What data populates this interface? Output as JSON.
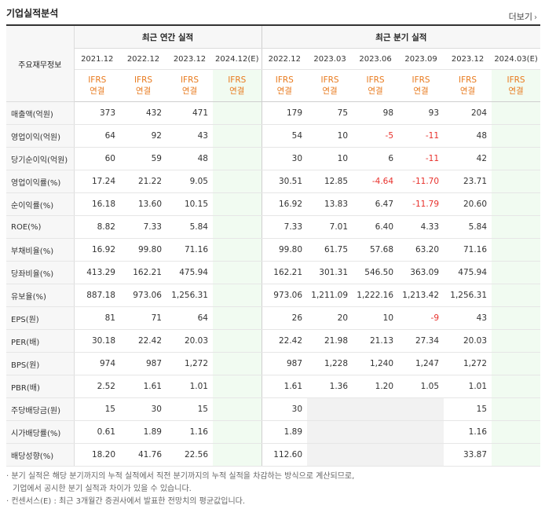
{
  "header": {
    "title": "기업실적분석",
    "more_label": "더보기"
  },
  "table": {
    "label_header": "주요재무정보",
    "annual_header": "최근 연간 실적",
    "quarter_header": "최근 분기 실적",
    "annual_periods": [
      "2021.12",
      "2022.12",
      "2023.12",
      "2024.12(E)"
    ],
    "quarter_periods": [
      "2022.12",
      "2023.03",
      "2023.06",
      "2023.09",
      "2023.12",
      "2024.03(E)"
    ],
    "ifrs_line1": "IFRS",
    "ifrs_line2": "연결",
    "rows": [
      {
        "label": "매출액(억원)",
        "annual": [
          "373",
          "432",
          "471",
          ""
        ],
        "quarter": [
          "179",
          "75",
          "98",
          "93",
          "204",
          ""
        ]
      },
      {
        "label": "영업이익(억원)",
        "annual": [
          "64",
          "92",
          "43",
          ""
        ],
        "quarter": [
          "54",
          "10",
          "-5",
          "-11",
          "48",
          ""
        ]
      },
      {
        "label": "당기순이익(억원)",
        "annual": [
          "60",
          "59",
          "48",
          ""
        ],
        "quarter": [
          "30",
          "10",
          "6",
          "-11",
          "42",
          ""
        ]
      },
      {
        "label": "영업이익률(%)",
        "annual": [
          "17.24",
          "21.22",
          "9.05",
          ""
        ],
        "quarter": [
          "30.51",
          "12.85",
          "-4.64",
          "-11.70",
          "23.71",
          ""
        ]
      },
      {
        "label": "순이익률(%)",
        "annual": [
          "16.18",
          "13.60",
          "10.15",
          ""
        ],
        "quarter": [
          "16.92",
          "13.83",
          "6.47",
          "-11.79",
          "20.60",
          ""
        ]
      },
      {
        "label": "ROE(%)",
        "annual": [
          "8.82",
          "7.33",
          "5.84",
          ""
        ],
        "quarter": [
          "7.33",
          "7.01",
          "6.40",
          "4.33",
          "5.84",
          ""
        ]
      },
      {
        "label": "부채비율(%)",
        "annual": [
          "16.92",
          "99.80",
          "71.16",
          ""
        ],
        "quarter": [
          "99.80",
          "61.75",
          "57.68",
          "63.20",
          "71.16",
          ""
        ]
      },
      {
        "label": "당좌비율(%)",
        "annual": [
          "413.29",
          "162.21",
          "475.94",
          ""
        ],
        "quarter": [
          "162.21",
          "301.31",
          "546.50",
          "363.09",
          "475.94",
          ""
        ]
      },
      {
        "label": "유보율(%)",
        "annual": [
          "887.18",
          "973.06",
          "1,256.31",
          ""
        ],
        "quarter": [
          "973.06",
          "1,211.09",
          "1,222.16",
          "1,213.42",
          "1,256.31",
          ""
        ]
      },
      {
        "label": "EPS(원)",
        "annual": [
          "81",
          "71",
          "64",
          ""
        ],
        "quarter": [
          "26",
          "20",
          "10",
          "-9",
          "43",
          ""
        ]
      },
      {
        "label": "PER(배)",
        "annual": [
          "30.18",
          "22.42",
          "20.03",
          ""
        ],
        "quarter": [
          "22.42",
          "21.98",
          "21.13",
          "27.34",
          "20.03",
          ""
        ]
      },
      {
        "label": "BPS(원)",
        "annual": [
          "974",
          "987",
          "1,272",
          ""
        ],
        "quarter": [
          "987",
          "1,228",
          "1,240",
          "1,247",
          "1,272",
          ""
        ]
      },
      {
        "label": "PBR(배)",
        "annual": [
          "2.52",
          "1.61",
          "1.01",
          ""
        ],
        "quarter": [
          "1.61",
          "1.36",
          "1.20",
          "1.05",
          "1.01",
          ""
        ]
      },
      {
        "label": "주당배당금(원)",
        "annual": [
          "15",
          "30",
          "15",
          ""
        ],
        "quarter": [
          "30",
          "",
          "",
          "",
          "15",
          ""
        ]
      },
      {
        "label": "시가배당률(%)",
        "annual": [
          "0.61",
          "1.89",
          "1.16",
          ""
        ],
        "quarter": [
          "1.89",
          "",
          "",
          "",
          "1.16",
          ""
        ]
      },
      {
        "label": "배당성향(%)",
        "annual": [
          "18.20",
          "41.76",
          "22.56",
          ""
        ],
        "quarter": [
          "112.60",
          "",
          "",
          "",
          "33.87",
          ""
        ]
      }
    ]
  },
  "notes": {
    "line1": "· 분기 실적은 해당 분기까지의 누적 실적에서 직전 분기까지의 누적 실적을 차감하는 방식으로 계산되므로,",
    "line2": "  기업에서 공시한 분기 실적과 차이가 있을 수 있습니다.",
    "line3": "· 컨센서스(E) : 최근 3개월간 증권사에서 발표한 전망치의 평균값입니다."
  }
}
